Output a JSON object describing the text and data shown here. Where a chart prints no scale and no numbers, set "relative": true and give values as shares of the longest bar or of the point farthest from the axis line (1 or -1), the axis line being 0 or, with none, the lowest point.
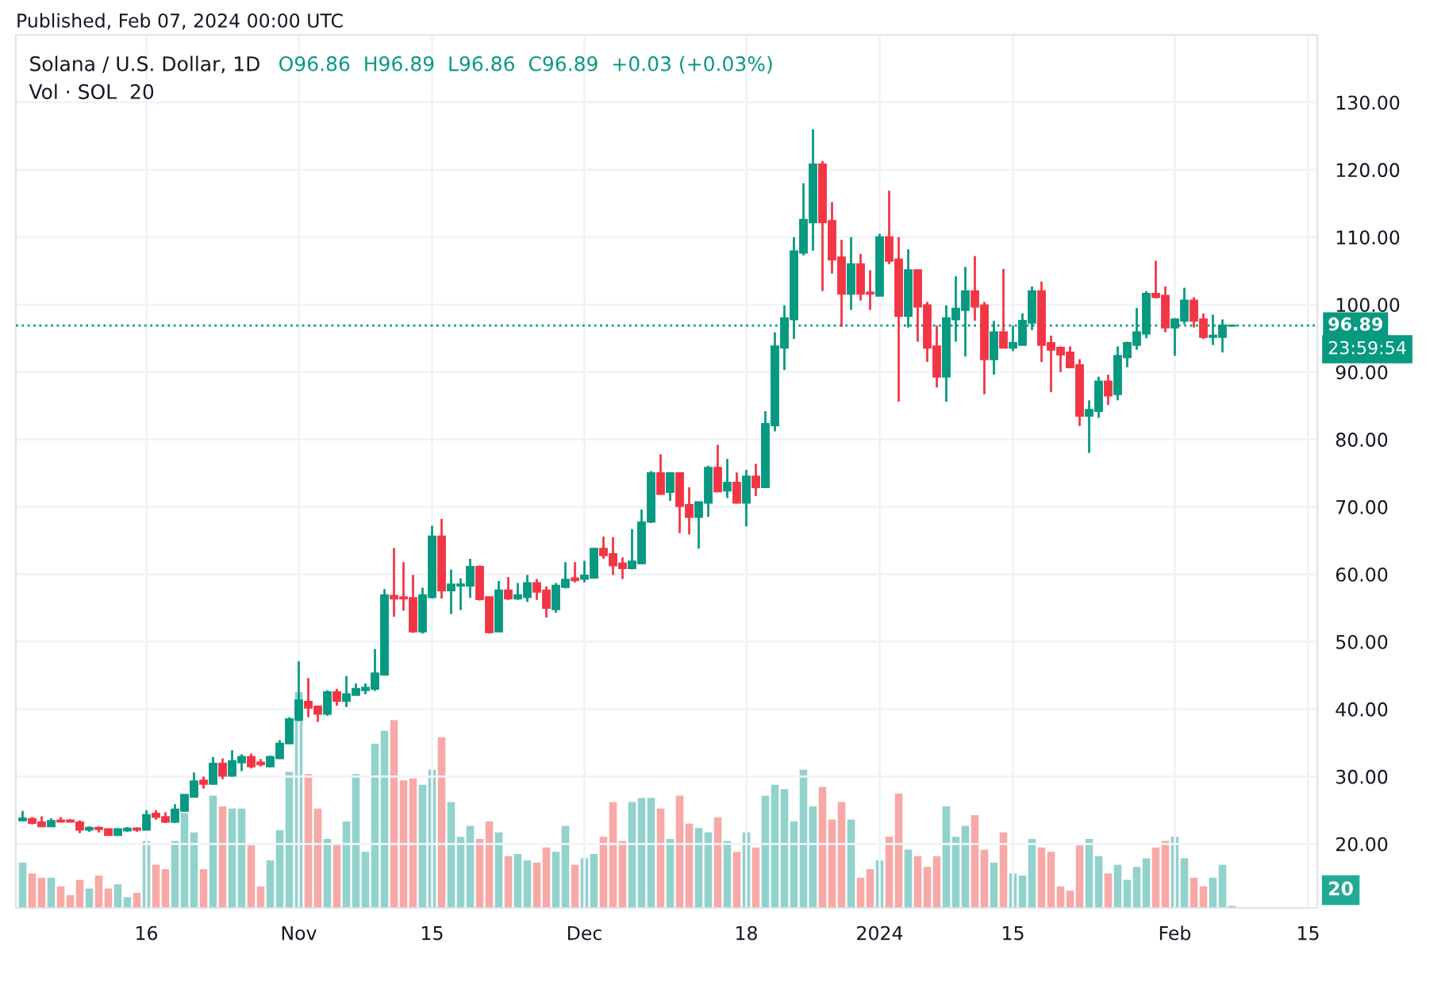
{
  "chart_data": [
    {
      "type": "candlestick",
      "title": "Solana / U.S. Dollar, 1D",
      "subtitle": "O96.86  H96.89  L96.86  C96.89  +0.03 (+0.03%)",
      "annotations": [
        "Published, Feb 07, 2024 00:00 UTC",
        "23:59:54"
      ],
      "x": [
        "2023-10-03",
        "2023-10-04",
        "2023-10-05",
        "2023-10-06",
        "2023-10-07",
        "2023-10-08",
        "2023-10-09",
        "2023-10-10",
        "2023-10-11",
        "2023-10-12",
        "2023-10-13",
        "2023-10-14",
        "2023-10-15",
        "2023-10-16",
        "2023-10-17",
        "2023-10-18",
        "2023-10-19",
        "2023-10-20",
        "2023-10-21",
        "2023-10-22",
        "2023-10-23",
        "2023-10-24",
        "2023-10-25",
        "2023-10-26",
        "2023-10-27",
        "2023-10-28",
        "2023-10-29",
        "2023-10-30",
        "2023-10-31",
        "2023-11-01",
        "2023-11-02",
        "2023-11-03",
        "2023-11-04",
        "2023-11-05",
        "2023-11-06",
        "2023-11-07",
        "2023-11-08",
        "2023-11-09",
        "2023-11-10",
        "2023-11-11",
        "2023-11-12",
        "2023-11-13",
        "2023-11-14",
        "2023-11-15",
        "2023-11-16",
        "2023-11-17",
        "2023-11-18",
        "2023-11-19",
        "2023-11-20",
        "2023-11-21",
        "2023-11-22",
        "2023-11-23",
        "2023-11-24",
        "2023-11-25",
        "2023-11-26",
        "2023-11-27",
        "2023-11-28",
        "2023-11-29",
        "2023-11-30",
        "2023-12-01",
        "2023-12-02",
        "2023-12-03",
        "2023-12-04",
        "2023-12-05",
        "2023-12-06",
        "2023-12-07",
        "2023-12-08",
        "2023-12-09",
        "2023-12-10",
        "2023-12-11",
        "2023-12-12",
        "2023-12-13",
        "2023-12-14",
        "2023-12-15",
        "2023-12-16",
        "2023-12-17",
        "2023-12-18",
        "2023-12-19",
        "2023-12-20",
        "2023-12-21",
        "2023-12-22",
        "2023-12-23",
        "2023-12-24",
        "2023-12-25",
        "2023-12-26",
        "2023-12-27",
        "2023-12-28",
        "2023-12-29",
        "2023-12-30",
        "2023-12-31",
        "2024-01-01",
        "2024-01-02",
        "2024-01-03",
        "2024-01-04",
        "2024-01-05",
        "2024-01-06",
        "2024-01-07",
        "2024-01-08",
        "2024-01-09",
        "2024-01-10",
        "2024-01-11",
        "2024-01-12",
        "2024-01-13",
        "2024-01-14",
        "2024-01-15",
        "2024-01-16",
        "2024-01-17",
        "2024-01-18",
        "2024-01-19",
        "2024-01-20",
        "2024-01-21",
        "2024-01-22",
        "2024-01-23",
        "2024-01-24",
        "2024-01-25",
        "2024-01-26",
        "2024-01-27",
        "2024-01-28",
        "2024-01-29",
        "2024-01-30",
        "2024-01-31",
        "2024-02-01",
        "2024-02-02",
        "2024-02-03",
        "2024-02-04",
        "2024-02-05",
        "2024-02-06",
        "2024-02-07"
      ],
      "ohlc": [
        [
          23.5,
          24.9,
          23.4,
          23.8
        ],
        [
          23.7,
          24.0,
          22.9,
          23.1
        ],
        [
          23.2,
          24.1,
          22.5,
          22.6
        ],
        [
          22.6,
          23.8,
          22.5,
          23.4
        ],
        [
          23.5,
          24.0,
          23.2,
          23.3
        ],
        [
          23.5,
          23.7,
          23.2,
          23.3
        ],
        [
          23.2,
          23.5,
          21.6,
          22.1
        ],
        [
          22.1,
          22.6,
          21.8,
          22.4
        ],
        [
          22.4,
          22.6,
          21.7,
          22.2
        ],
        [
          22.2,
          22.3,
          21.2,
          21.3
        ],
        [
          21.3,
          22.3,
          21.2,
          22.2
        ],
        [
          22.0,
          22.5,
          21.8,
          22.3
        ],
        [
          22.3,
          22.5,
          21.8,
          22.1
        ],
        [
          22.1,
          25.0,
          22.0,
          24.3
        ],
        [
          24.5,
          25.0,
          23.6,
          24.0
        ],
        [
          24.0,
          24.7,
          23.1,
          23.3
        ],
        [
          23.3,
          25.9,
          23.1,
          25.1
        ],
        [
          24.9,
          27.4,
          24.8,
          27.3
        ],
        [
          27.0,
          30.6,
          26.9,
          29.3
        ],
        [
          29.4,
          30.0,
          28.2,
          28.9
        ],
        [
          28.9,
          32.9,
          28.8,
          31.9
        ],
        [
          31.9,
          32.7,
          29.6,
          30.1
        ],
        [
          30.1,
          33.9,
          30.0,
          32.3
        ],
        [
          32.1,
          33.3,
          30.8,
          32.9
        ],
        [
          32.9,
          33.4,
          31.2,
          31.5
        ],
        [
          32.1,
          32.6,
          31.5,
          31.8
        ],
        [
          31.5,
          33.1,
          31.4,
          32.9
        ],
        [
          32.7,
          35.4,
          32.6,
          34.9
        ],
        [
          34.9,
          38.8,
          34.8,
          38.5
        ],
        [
          38.4,
          47.1,
          38.2,
          41.3
        ],
        [
          41.1,
          44.6,
          38.8,
          40.2
        ],
        [
          40.4,
          40.4,
          38.1,
          39.3
        ],
        [
          39.3,
          42.8,
          39.0,
          42.5
        ],
        [
          42.5,
          43.0,
          40.5,
          41.2
        ],
        [
          41.2,
          44.9,
          40.3,
          42.2
        ],
        [
          42.1,
          43.8,
          42.1,
          43.0
        ],
        [
          42.8,
          43.8,
          42.2,
          43.2
        ],
        [
          43.0,
          48.9,
          42.7,
          45.3
        ],
        [
          45.1,
          57.8,
          45.1,
          56.9
        ],
        [
          56.8,
          63.9,
          53.7,
          56.4
        ],
        [
          56.6,
          61.8,
          54.6,
          56.4
        ],
        [
          56.5,
          59.9,
          51.3,
          51.5
        ],
        [
          51.5,
          58.0,
          51.2,
          56.9
        ],
        [
          56.6,
          67.2,
          56.4,
          65.6
        ],
        [
          65.6,
          68.2,
          56.4,
          57.6
        ],
        [
          57.6,
          60.7,
          54.1,
          58.5
        ],
        [
          58.3,
          59.4,
          54.7,
          58.5
        ],
        [
          58.3,
          62.3,
          56.5,
          61.1
        ],
        [
          61.1,
          61.3,
          56.1,
          56.3
        ],
        [
          56.6,
          56.6,
          51.2,
          51.4
        ],
        [
          51.5,
          59.0,
          51.5,
          57.6
        ],
        [
          57.6,
          59.6,
          56.2,
          56.4
        ],
        [
          56.4,
          58.7,
          56.2,
          56.9
        ],
        [
          56.6,
          59.9,
          55.9,
          58.7
        ],
        [
          58.7,
          59.3,
          56.2,
          57.4
        ],
        [
          57.6,
          58.2,
          53.6,
          55.0
        ],
        [
          54.8,
          58.7,
          54.3,
          58.3
        ],
        [
          58.1,
          61.8,
          57.9,
          59.2
        ],
        [
          59.4,
          61.8,
          58.8,
          59.1
        ],
        [
          59.3,
          62.0,
          58.8,
          59.8
        ],
        [
          59.5,
          63.9,
          59.4,
          63.8
        ],
        [
          63.8,
          65.6,
          62.3,
          62.8
        ],
        [
          63.0,
          65.5,
          59.9,
          61.3
        ],
        [
          61.6,
          62.5,
          59.3,
          60.9
        ],
        [
          60.9,
          66.7,
          60.7,
          61.9
        ],
        [
          61.6,
          69.6,
          61.5,
          67.7
        ],
        [
          67.8,
          75.3,
          67.6,
          75.0
        ],
        [
          75.0,
          77.8,
          71.8,
          71.9
        ],
        [
          72.2,
          75.0,
          70.9,
          75.0
        ],
        [
          75.0,
          75.0,
          66.1,
          70.1
        ],
        [
          70.3,
          72.9,
          65.9,
          68.5
        ],
        [
          68.5,
          70.7,
          63.8,
          70.7
        ],
        [
          70.6,
          76.1,
          68.5,
          75.8
        ],
        [
          75.8,
          79.2,
          72.2,
          72.3
        ],
        [
          72.4,
          77.1,
          71.3,
          73.6
        ],
        [
          73.6,
          75.1,
          70.5,
          70.6
        ],
        [
          70.6,
          75.5,
          67.1,
          74.5
        ],
        [
          74.5,
          76.4,
          71.6,
          72.9
        ],
        [
          72.9,
          84.2,
          72.9,
          82.3
        ],
        [
          82.1,
          95.9,
          81.2,
          93.8
        ],
        [
          93.6,
          99.9,
          90.3,
          98.0
        ],
        [
          97.8,
          110.0,
          94.9,
          107.9
        ],
        [
          107.7,
          118.0,
          107.3,
          112.6
        ],
        [
          112.2,
          126.0,
          108.0,
          120.8
        ],
        [
          120.8,
          121.3,
          102.0,
          112.2
        ],
        [
          112.4,
          115.2,
          104.6,
          106.7
        ],
        [
          107.0,
          109.6,
          96.7,
          101.6
        ],
        [
          101.6,
          110.0,
          99.2,
          106.0
        ],
        [
          106.0,
          107.5,
          100.6,
          101.6
        ],
        [
          101.8,
          105.1,
          99.2,
          101.6
        ],
        [
          101.3,
          110.5,
          101.3,
          110.0
        ],
        [
          110.0,
          116.9,
          106.0,
          106.5
        ],
        [
          106.7,
          110.0,
          85.6,
          98.3
        ],
        [
          98.3,
          108.2,
          96.6,
          105.1
        ],
        [
          105.1,
          105.1,
          94.5,
          99.7
        ],
        [
          99.9,
          100.4,
          91.5,
          93.6
        ],
        [
          93.8,
          96.9,
          87.7,
          89.3
        ],
        [
          89.3,
          99.9,
          85.6,
          98.0
        ],
        [
          97.8,
          104.2,
          94.5,
          99.4
        ],
        [
          99.2,
          105.6,
          92.3,
          102.0
        ],
        [
          102.0,
          107.2,
          97.6,
          99.7
        ],
        [
          99.9,
          100.4,
          86.7,
          91.9
        ],
        [
          91.9,
          97.6,
          89.6,
          95.9
        ],
        [
          95.9,
          105.3,
          93.6,
          93.6
        ],
        [
          93.6,
          96.9,
          93.1,
          94.3
        ],
        [
          94.0,
          98.7,
          94.0,
          97.6
        ],
        [
          97.3,
          102.7,
          96.2,
          102.0
        ],
        [
          102.0,
          103.4,
          91.5,
          94.0
        ],
        [
          94.3,
          95.4,
          87.0,
          93.3
        ],
        [
          93.6,
          93.8,
          90.0,
          92.6
        ],
        [
          92.9,
          93.8,
          90.7,
          90.7
        ],
        [
          91.0,
          91.9,
          82.0,
          83.5
        ],
        [
          83.5,
          85.8,
          78.0,
          84.4
        ],
        [
          84.2,
          89.3,
          83.2,
          88.6
        ],
        [
          88.6,
          89.6,
          85.1,
          86.5
        ],
        [
          86.7,
          93.8,
          85.8,
          92.4
        ],
        [
          92.2,
          94.5,
          90.7,
          94.3
        ],
        [
          94.0,
          99.5,
          93.3,
          95.9
        ],
        [
          95.7,
          102.0,
          95.0,
          101.6
        ],
        [
          101.6,
          106.5,
          100.9,
          101.1
        ],
        [
          101.3,
          102.7,
          95.9,
          96.6
        ],
        [
          96.6,
          98.0,
          92.4,
          97.8
        ],
        [
          97.6,
          102.5,
          97.1,
          100.6
        ],
        [
          100.6,
          101.1,
          96.6,
          97.6
        ],
        [
          97.8,
          98.7,
          94.9,
          95.2
        ],
        [
          95.2,
          98.5,
          94.0,
          95.4
        ],
        [
          95.2,
          97.8,
          92.9,
          96.9
        ],
        [
          96.86,
          96.89,
          96.86,
          96.89
        ]
      ],
      "colors": [
        "#089981",
        "#f23645",
        "#f23645",
        "#089981",
        "#f23645",
        "#f23645",
        "#f23645",
        "#089981",
        "#f23645",
        "#f23645",
        "#089981",
        "#089981",
        "#f23645",
        "#089981",
        "#f23645",
        "#f23645",
        "#089981",
        "#089981",
        "#089981",
        "#f23645",
        "#089981",
        "#f23645",
        "#089981",
        "#089981",
        "#f23645",
        "#f23645",
        "#089981",
        "#089981",
        "#089981",
        "#089981",
        "#f23645",
        "#f23645",
        "#089981",
        "#f23645",
        "#089981",
        "#089981",
        "#089981",
        "#089981",
        "#089981",
        "#f23645",
        "#f23645",
        "#f23645",
        "#089981",
        "#089981",
        "#f23645",
        "#089981",
        "#089981",
        "#089981",
        "#f23645",
        "#f23645",
        "#089981",
        "#f23645",
        "#089981",
        "#089981",
        "#f23645",
        "#f23645",
        "#089981",
        "#089981",
        "#f23645",
        "#089981",
        "#089981",
        "#f23645",
        "#f23645",
        "#f23645",
        "#089981",
        "#089981",
        "#089981",
        "#f23645",
        "#089981",
        "#f23645",
        "#f23645",
        "#089981",
        "#089981",
        "#f23645",
        "#089981",
        "#f23645",
        "#089981",
        "#f23645",
        "#089981",
        "#089981",
        "#089981",
        "#089981",
        "#089981",
        "#089981",
        "#f23645",
        "#f23645",
        "#f23645",
        "#089981",
        "#f23645",
        "#f23645",
        "#089981",
        "#f23645",
        "#f23645",
        "#089981",
        "#f23645",
        "#f23645",
        "#f23645",
        "#089981",
        "#089981",
        "#089981",
        "#f23645",
        "#f23645",
        "#089981",
        "#f23645",
        "#089981",
        "#089981",
        "#089981",
        "#f23645",
        "#f23645",
        "#f23645",
        "#f23645",
        "#f23645",
        "#089981",
        "#089981",
        "#f23645",
        "#089981",
        "#089981",
        "#089981",
        "#089981",
        "#f23645",
        "#f23645",
        "#089981",
        "#089981",
        "#f23645",
        "#f23645",
        "#089981",
        "#089981",
        "#089981"
      ],
      "xlim": [
        "2023-10-02T07:00",
        "2024-02-15T23:00"
      ],
      "xticks": [
        {
          "value": "2023-10-16",
          "label": null
        },
        {
          "value": "2023-11-01",
          "label": null
        },
        {
          "value": "2023-11-15",
          "label": null
        },
        {
          "value": "2023-12-01",
          "label": null
        },
        {
          "value": "2023-12-18",
          "label": null
        },
        {
          "value": "2024-01-01",
          "label": null
        },
        {
          "value": "2024-01-15",
          "label": null
        },
        {
          "value": "2024-02-01",
          "label": null
        },
        {
          "value": "2024-02-15",
          "label": null
        }
      ],
      "tick_labels": "y",
      "ylim": [
        10.5,
        140
      ],
      "yticks": [
        {
          "value": 20,
          "label": "20.00"
        },
        {
          "value": 30,
          "label": "30.00"
        },
        {
          "value": 40,
          "label": "40.00"
        },
        {
          "value": 50,
          "label": "50.00"
        },
        {
          "value": 60,
          "label": "60.00"
        },
        {
          "value": 70,
          "label": "70.00"
        },
        {
          "value": 80,
          "label": "80.00"
        },
        {
          "value": 90,
          "label": "90.00"
        },
        {
          "value": 100,
          "label": "100.00"
        },
        {
          "value": 110,
          "label": "110.00"
        },
        {
          "value": 120,
          "label": "120.00"
        },
        {
          "value": 130,
          "label": "130.00"
        }
      ],
      "ref_lines": [
        {
          "axis": "y",
          "value": 96.89,
          "label": "96.89",
          "color": "#089981",
          "line_style": "dotted"
        }
      ],
      "grid": true
    },
    {
      "type": "bar",
      "relative": true,
      "annotations": [
        "Vol · SOL  20",
        "20"
      ],
      "tick_labels": "x",
      "xlim": [
        "2023-10-02T07:00",
        "2024-02-15T23:00"
      ],
      "xticks": [
        {
          "value": "2023-10-16",
          "label": "16"
        },
        {
          "value": "2023-11-01",
          "label": "Nov"
        },
        {
          "value": "2023-11-15",
          "label": "15"
        },
        {
          "value": "2023-12-01",
          "label": "Dec"
        },
        {
          "value": "2023-12-18",
          "label": "18"
        },
        {
          "value": "2024-01-01",
          "label": "2024"
        },
        {
          "value": "2024-01-15",
          "label": "15"
        },
        {
          "value": "2024-02-01",
          "label": "Feb"
        },
        {
          "value": "2024-02-15",
          "label": "15"
        }
      ],
      "x": [
        "2023-10-03",
        "2023-10-04",
        "2023-10-05",
        "2023-10-06",
        "2023-10-07",
        "2023-10-08",
        "2023-10-09",
        "2023-10-10",
        "2023-10-11",
        "2023-10-12",
        "2023-10-13",
        "2023-10-14",
        "2023-10-15",
        "2023-10-16",
        "2023-10-17",
        "2023-10-18",
        "2023-10-19",
        "2023-10-20",
        "2023-10-21",
        "2023-10-22",
        "2023-10-23",
        "2023-10-24",
        "2023-10-25",
        "2023-10-26",
        "2023-10-27",
        "2023-10-28",
        "2023-10-29",
        "2023-10-30",
        "2023-10-31",
        "2023-11-01",
        "2023-11-02",
        "2023-11-03",
        "2023-11-04",
        "2023-11-05",
        "2023-11-06",
        "2023-11-07",
        "2023-11-08",
        "2023-11-09",
        "2023-11-10",
        "2023-11-11",
        "2023-11-12",
        "2023-11-13",
        "2023-11-14",
        "2023-11-15",
        "2023-11-16",
        "2023-11-17",
        "2023-11-18",
        "2023-11-19",
        "2023-11-20",
        "2023-11-21",
        "2023-11-22",
        "2023-11-23",
        "2023-11-24",
        "2023-11-25",
        "2023-11-26",
        "2023-11-27",
        "2023-11-28",
        "2023-11-29",
        "2023-11-30",
        "2023-12-01",
        "2023-12-02",
        "2023-12-03",
        "2023-12-04",
        "2023-12-05",
        "2023-12-06",
        "2023-12-07",
        "2023-12-08",
        "2023-12-09",
        "2023-12-10",
        "2023-12-11",
        "2023-12-12",
        "2023-12-13",
        "2023-12-14",
        "2023-12-15",
        "2023-12-16",
        "2023-12-17",
        "2023-12-18",
        "2023-12-19",
        "2023-12-20",
        "2023-12-21",
        "2023-12-22",
        "2023-12-23",
        "2023-12-24",
        "2023-12-25",
        "2023-12-26",
        "2023-12-27",
        "2023-12-28",
        "2023-12-29",
        "2023-12-30",
        "2023-12-31",
        "2024-01-01",
        "2024-01-02",
        "2024-01-03",
        "2024-01-04",
        "2024-01-05",
        "2024-01-06",
        "2024-01-07",
        "2024-01-08",
        "2024-01-09",
        "2024-01-10",
        "2024-01-11",
        "2024-01-12",
        "2024-01-13",
        "2024-01-14",
        "2024-01-15",
        "2024-01-16",
        "2024-01-17",
        "2024-01-18",
        "2024-01-19",
        "2024-01-20",
        "2024-01-21",
        "2024-01-22",
        "2024-01-23",
        "2024-01-24",
        "2024-01-25",
        "2024-01-26",
        "2024-01-27",
        "2024-01-28",
        "2024-01-29",
        "2024-01-30",
        "2024-01-31",
        "2024-02-01",
        "2024-02-02",
        "2024-02-03",
        "2024-02-04",
        "2024-02-05",
        "2024-02-06",
        "2024-02-07"
      ],
      "values": [
        0.21,
        0.16,
        0.14,
        0.14,
        0.1,
        0.06,
        0.13,
        0.09,
        0.15,
        0.09,
        0.11,
        0.05,
        0.07,
        0.31,
        0.2,
        0.18,
        0.31,
        0.44,
        0.35,
        0.18,
        0.52,
        0.47,
        0.46,
        0.46,
        0.29,
        0.1,
        0.22,
        0.36,
        0.63,
        1,
        0.62,
        0.46,
        0.32,
        0.3,
        0.4,
        0.62,
        0.26,
        0.76,
        0.82,
        0.87,
        0.59,
        0.6,
        0.57,
        0.64,
        0.79,
        0.49,
        0.33,
        0.38,
        0.32,
        0.4,
        0.35,
        0.24,
        0.25,
        0.22,
        0.21,
        0.28,
        0.26,
        0.38,
        0.2,
        0.23,
        0.25,
        0.33,
        0.49,
        0.31,
        0.49,
        0.51,
        0.51,
        0.46,
        0.32,
        0.52,
        0.39,
        0.37,
        0.35,
        0.42,
        0.31,
        0.26,
        0.35,
        0.28,
        0.52,
        0.57,
        0.55,
        0.4,
        0.64,
        0.47,
        0.56,
        0.41,
        0.49,
        0.41,
        0.14,
        0.18,
        0.22,
        0.33,
        0.53,
        0.27,
        0.24,
        0.19,
        0.24,
        0.47,
        0.33,
        0.38,
        0.43,
        0.27,
        0.21,
        0.35,
        0.16,
        0.15,
        0.32,
        0.28,
        0.26,
        0.1,
        0.08,
        0.29,
        0.32,
        0.24,
        0.16,
        0.2,
        0.13,
        0.19,
        0.23,
        0.28,
        0.31,
        0.33,
        0.23,
        0.14,
        0.1,
        0.14,
        0.2,
        0.01
      ],
      "colors": [
        "#92d2cc",
        "#f7a9a7",
        "#f7a9a7",
        "#92d2cc",
        "#f7a9a7",
        "#f7a9a7",
        "#f7a9a7",
        "#92d2cc",
        "#f7a9a7",
        "#f7a9a7",
        "#92d2cc",
        "#92d2cc",
        "#f7a9a7",
        "#92d2cc",
        "#f7a9a7",
        "#f7a9a7",
        "#92d2cc",
        "#92d2cc",
        "#92d2cc",
        "#f7a9a7",
        "#92d2cc",
        "#f7a9a7",
        "#92d2cc",
        "#92d2cc",
        "#f7a9a7",
        "#f7a9a7",
        "#92d2cc",
        "#92d2cc",
        "#92d2cc",
        "#92d2cc",
        "#f7a9a7",
        "#f7a9a7",
        "#92d2cc",
        "#f7a9a7",
        "#92d2cc",
        "#92d2cc",
        "#92d2cc",
        "#92d2cc",
        "#92d2cc",
        "#f7a9a7",
        "#f7a9a7",
        "#f7a9a7",
        "#92d2cc",
        "#92d2cc",
        "#f7a9a7",
        "#92d2cc",
        "#92d2cc",
        "#92d2cc",
        "#f7a9a7",
        "#f7a9a7",
        "#92d2cc",
        "#f7a9a7",
        "#92d2cc",
        "#92d2cc",
        "#f7a9a7",
        "#f7a9a7",
        "#92d2cc",
        "#92d2cc",
        "#f7a9a7",
        "#92d2cc",
        "#92d2cc",
        "#f7a9a7",
        "#f7a9a7",
        "#f7a9a7",
        "#92d2cc",
        "#92d2cc",
        "#92d2cc",
        "#f7a9a7",
        "#92d2cc",
        "#f7a9a7",
        "#f7a9a7",
        "#92d2cc",
        "#92d2cc",
        "#f7a9a7",
        "#92d2cc",
        "#f7a9a7",
        "#92d2cc",
        "#f7a9a7",
        "#92d2cc",
        "#92d2cc",
        "#92d2cc",
        "#92d2cc",
        "#92d2cc",
        "#92d2cc",
        "#f7a9a7",
        "#f7a9a7",
        "#f7a9a7",
        "#92d2cc",
        "#f7a9a7",
        "#f7a9a7",
        "#92d2cc",
        "#f7a9a7",
        "#f7a9a7",
        "#92d2cc",
        "#f7a9a7",
        "#f7a9a7",
        "#f7a9a7",
        "#92d2cc",
        "#92d2cc",
        "#92d2cc",
        "#f7a9a7",
        "#f7a9a7",
        "#92d2cc",
        "#f7a9a7",
        "#92d2cc",
        "#92d2cc",
        "#92d2cc",
        "#f7a9a7",
        "#f7a9a7",
        "#f7a9a7",
        "#f7a9a7",
        "#f7a9a7",
        "#92d2cc",
        "#92d2cc",
        "#f7a9a7",
        "#92d2cc",
        "#92d2cc",
        "#92d2cc",
        "#92d2cc",
        "#f7a9a7",
        "#f7a9a7",
        "#92d2cc",
        "#92d2cc",
        "#f7a9a7",
        "#f7a9a7",
        "#92d2cc",
        "#92d2cc",
        "#92d2cc"
      ]
    }
  ]
}
